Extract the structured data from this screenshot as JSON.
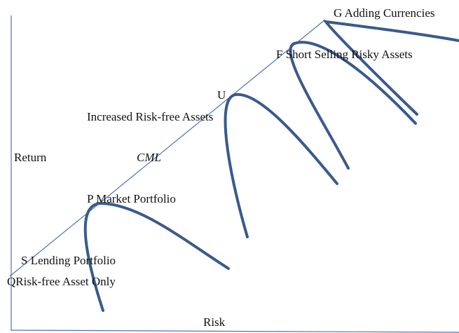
{
  "labels": {
    "g": "G Adding Currencies",
    "f": "F Short Selling Risky Assets",
    "u": "U",
    "increased": "Increased Risk-free Assets",
    "y_axis": "Return",
    "cml": "CML",
    "p": "P Market Portfolio",
    "s": "S Lending Portfolio",
    "q": "QRisk-free Asset Only",
    "x_axis": "Risk"
  }
}
